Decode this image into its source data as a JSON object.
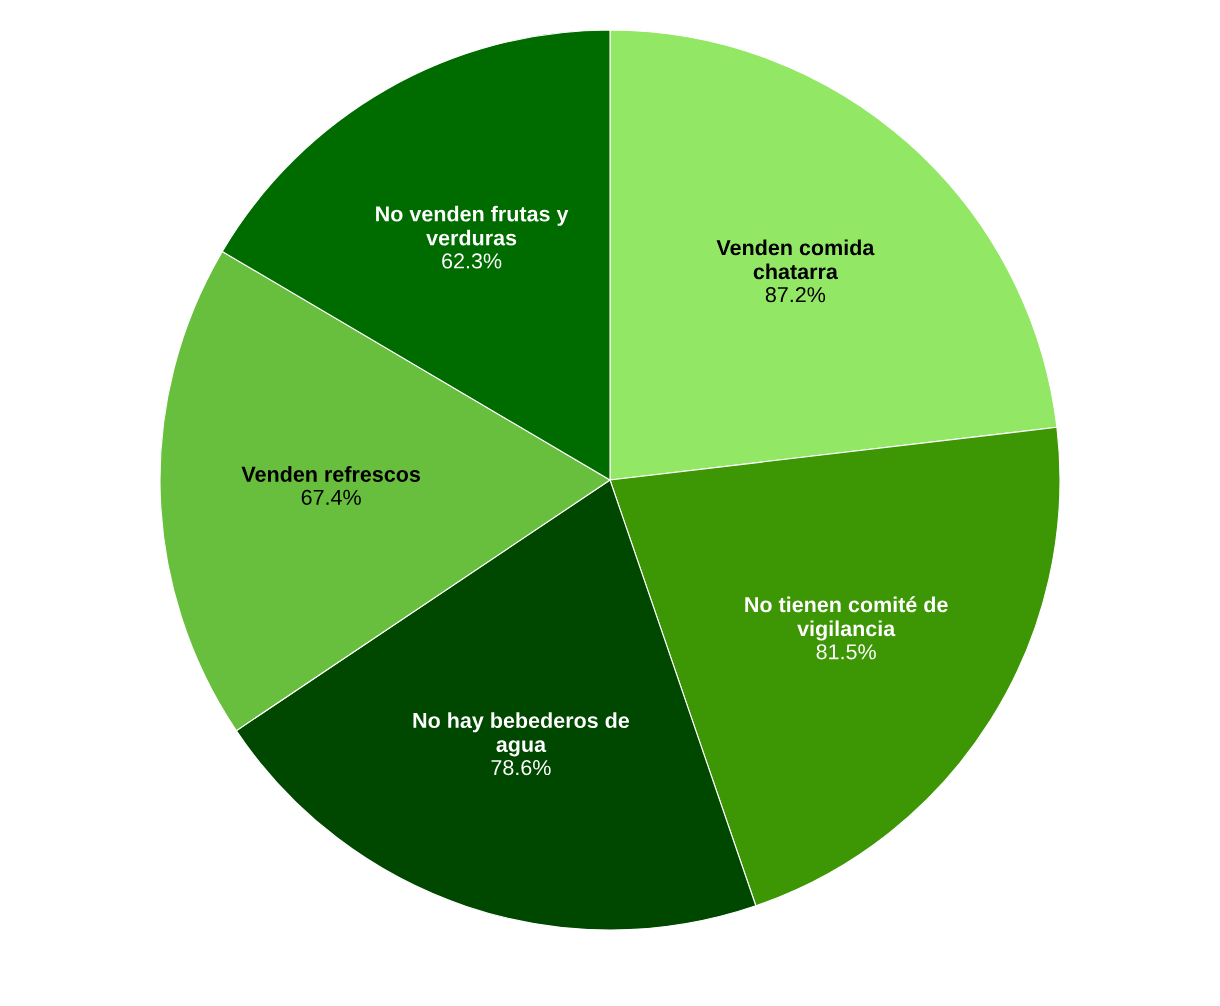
{
  "chart_data": {
    "type": "pie",
    "categories": [
      "Venden comida chatarra",
      "No tienen comité de vigilancia",
      "No hay bebederos de agua",
      "Venden refrescos",
      "No venden frutas y verduras"
    ],
    "values": [
      87.2,
      81.5,
      78.6,
      67.4,
      62.3
    ],
    "value_labels": [
      "87.2%",
      "81.5%",
      "78.6%",
      "67.4%",
      "62.3%"
    ],
    "colors": [
      "#92e865",
      "#3d9604",
      "#004700",
      "#67bf3d",
      "#006c00"
    ]
  }
}
